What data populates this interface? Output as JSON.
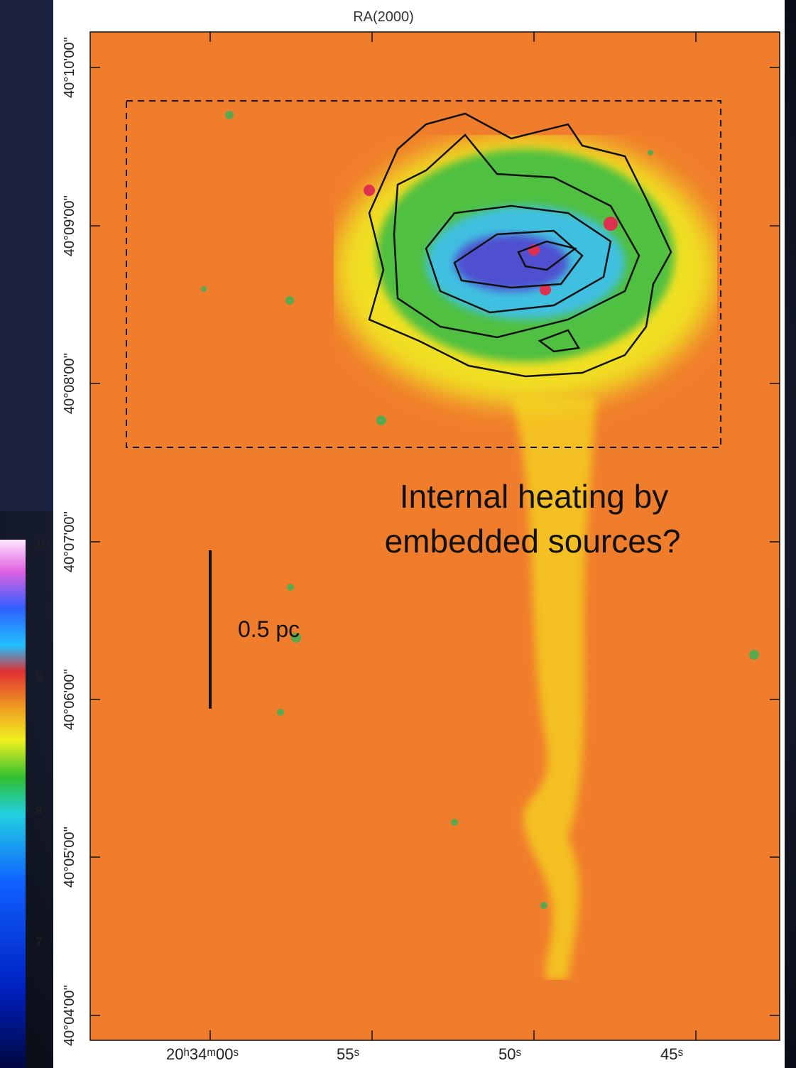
{
  "figure": {
    "x_axis_title": "RA(2000)",
    "dec_labels": [
      "40°10'00''",
      "40°09'00''",
      "40°08'00''",
      "40°07'00''",
      "40°06'00''",
      "40°05'00''",
      "40°04'00''"
    ],
    "ra_labels": [
      "20ʰ34ᵐ00ˢ",
      "55ˢ",
      "50ˢ",
      "45ˢ"
    ],
    "colorbar_labels": [
      "10",
      "9",
      "8",
      "7"
    ],
    "scale_bar": "0.5 pc",
    "annotation": [
      "Internal heating by",
      "embedded sources?"
    ]
  }
}
